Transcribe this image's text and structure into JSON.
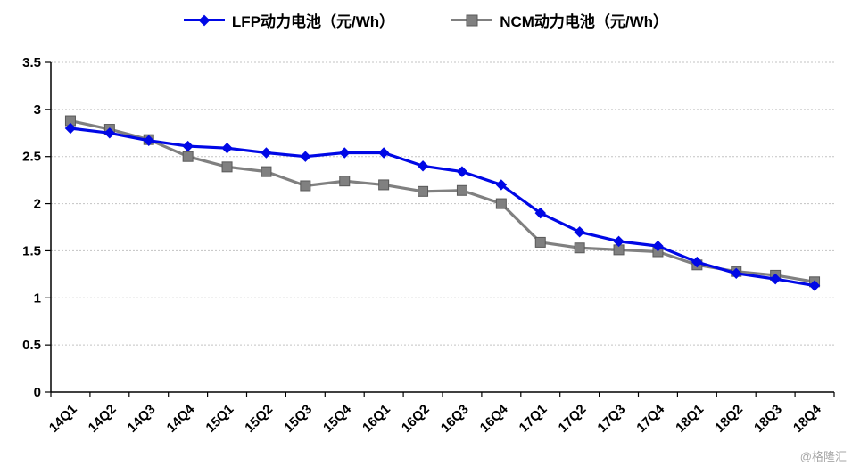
{
  "watermark": "@格隆汇",
  "chart_data": {
    "type": "line",
    "title": "",
    "xlabel": "",
    "ylabel": "",
    "ylim": [
      0,
      3.5
    ],
    "ytick_step": 0.5,
    "grid": true,
    "legend_position": "top",
    "categories": [
      "14Q1",
      "14Q2",
      "14Q3",
      "14Q4",
      "15Q1",
      "15Q2",
      "15Q3",
      "15Q4",
      "16Q1",
      "16Q2",
      "16Q3",
      "16Q4",
      "17Q1",
      "17Q2",
      "17Q3",
      "17Q4",
      "18Q1",
      "18Q2",
      "18Q3",
      "18Q4"
    ],
    "series": [
      {
        "name": "LFP动力电池（元/Wh）",
        "color": "#0008e6",
        "marker": "diamond",
        "values": [
          2.8,
          2.75,
          2.67,
          2.61,
          2.59,
          2.54,
          2.5,
          2.54,
          2.54,
          2.4,
          2.34,
          2.2,
          1.9,
          1.7,
          1.6,
          1.55,
          1.38,
          1.26,
          1.2,
          1.13
        ]
      },
      {
        "name": "NCM动力电池（元/Wh）",
        "color": "#808080",
        "marker": "square",
        "values": [
          2.88,
          2.79,
          2.68,
          2.5,
          2.39,
          2.34,
          2.19,
          2.24,
          2.2,
          2.13,
          2.14,
          2.0,
          1.59,
          1.53,
          1.51,
          1.49,
          1.35,
          1.28,
          1.24,
          1.17
        ]
      }
    ]
  }
}
